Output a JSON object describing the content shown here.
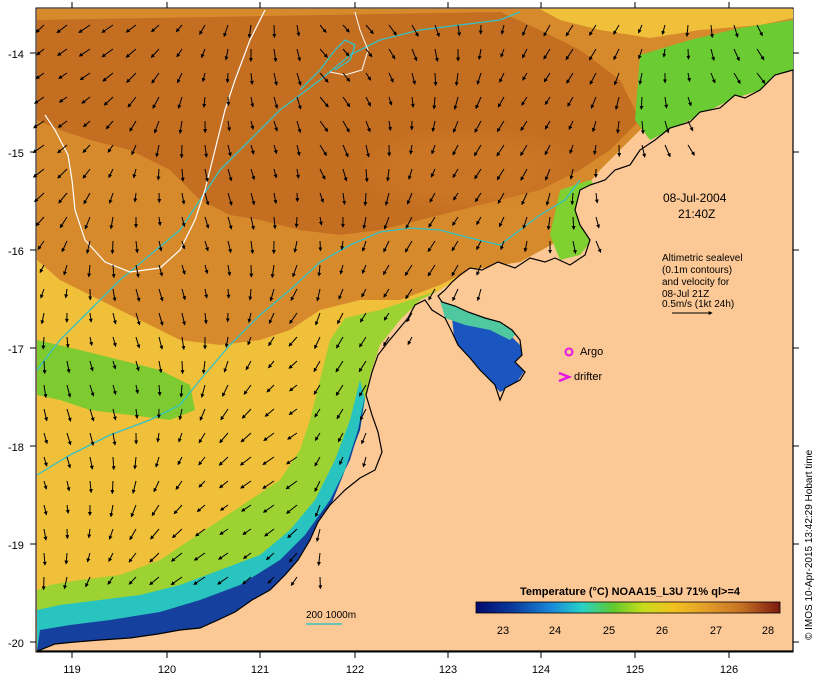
{
  "map": {
    "y_axis_ticks": [
      "-14",
      "-15",
      "-16",
      "-17",
      "-18",
      "-19",
      "-20"
    ],
    "x_axis_ticks": [
      "119",
      "120",
      "121",
      "122",
      "123",
      "124",
      "125",
      "126"
    ],
    "date_line1": "08-Jul-2004",
    "date_line2": "21:40Z",
    "altimetry_note": [
      "Altimetric sealevel",
      "(0.1m contours)",
      "and velocity for",
      "08-Jul 21Z",
      "0.5m/s (1kt 24h)"
    ],
    "argo_label": "Argo",
    "drifter_label": "drifter",
    "depth_legend": "200  1000m",
    "side_credit": "© IMOS 10-Apr-2015 13:42:29 Hobart time",
    "colorbar": {
      "title": "Temperature (°C) NOAA15_L3U 71% ql>=4",
      "ticks": [
        "23",
        "24",
        "25",
        "26",
        "27",
        "28"
      ],
      "range": [
        22.2,
        28.6
      ]
    },
    "colors": {
      "land": "#fcc895",
      "warm": "#c77324",
      "mid": "#f2c21f",
      "green": "#5fc92e",
      "cool": "#0a3a9c",
      "contour_depth": "#36c2c4",
      "contour_sealevel": "#ffffff",
      "marker": "#e616e6"
    }
  }
}
